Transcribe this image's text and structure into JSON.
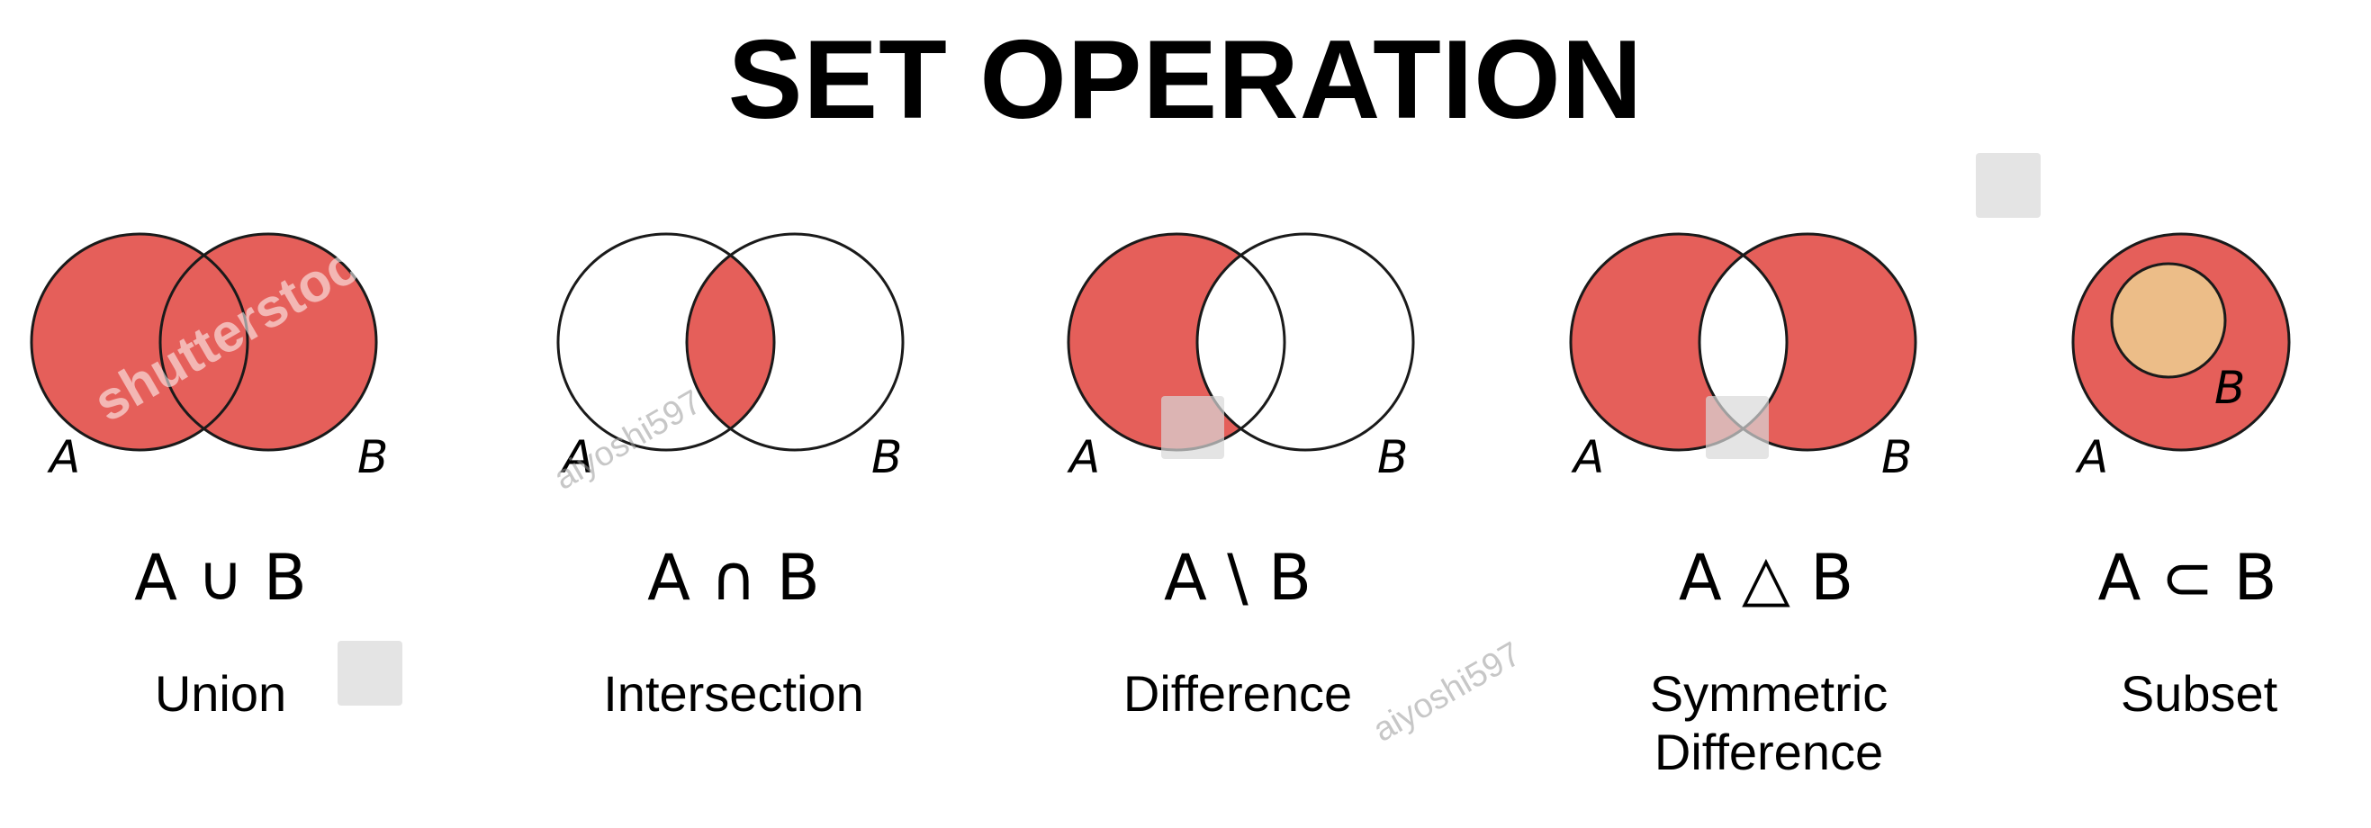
{
  "title": "SET OPERATION",
  "colors": {
    "fill": "#e55f5a",
    "inner_fill": "#ecbd88",
    "stroke": "#1a1a1a",
    "background": "#ffffff"
  },
  "operations": [
    {
      "id": "union",
      "notation": "A ∪ B",
      "name": [
        "Union"
      ],
      "label_a": "A",
      "label_b": "B"
    },
    {
      "id": "intersection",
      "notation": "A ∩ B",
      "name": [
        "Intersection"
      ],
      "label_a": "A",
      "label_b": "B"
    },
    {
      "id": "difference",
      "notation": "A \\ B",
      "name": [
        "Difference"
      ],
      "label_a": "A",
      "label_b": "B"
    },
    {
      "id": "symmetric-difference",
      "notation": "A △ B",
      "name": [
        "Symmetric",
        "Difference"
      ],
      "label_a": "A",
      "label_b": "B"
    },
    {
      "id": "subset",
      "notation": "A ⊂ B",
      "name": [
        "Subset"
      ],
      "label_a": "A",
      "label_b": "B"
    }
  ],
  "watermarks": {
    "brand": "shutterstock",
    "author": "aiyoshi597"
  }
}
